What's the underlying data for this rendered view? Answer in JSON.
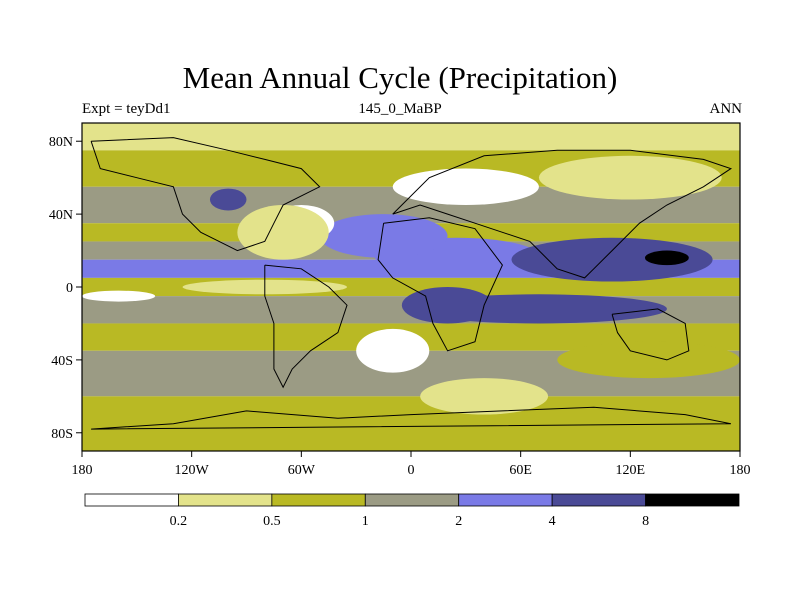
{
  "title": "Mean Annual Cycle (Precipitation)",
  "subtitle_left": "Expt = teyDd1",
  "subtitle_center": "145_0_MaBP",
  "subtitle_right": "ANN",
  "axes": {
    "lon_range": [
      -180,
      180
    ],
    "lat_range": [
      -90,
      90
    ],
    "x_ticks": [
      {
        "value": -180,
        "label": "180"
      },
      {
        "value": -120,
        "label": "120W"
      },
      {
        "value": -60,
        "label": "60W"
      },
      {
        "value": 0,
        "label": "0"
      },
      {
        "value": 60,
        "label": "60E"
      },
      {
        "value": 120,
        "label": "120E"
      },
      {
        "value": 180,
        "label": "180"
      }
    ],
    "y_ticks": [
      {
        "value": 80,
        "label": "80N"
      },
      {
        "value": 40,
        "label": "40N"
      },
      {
        "value": 0,
        "label": "0"
      },
      {
        "value": -40,
        "label": "40S"
      },
      {
        "value": -80,
        "label": "80S"
      }
    ]
  },
  "colorbar": {
    "colors": [
      "#ffffff",
      "#e3e38b",
      "#b9b924",
      "#9b9b84",
      "#7a7ae6",
      "#4a4a96",
      "#000000"
    ],
    "labels": [
      "0.2",
      "0.5",
      "1",
      "2",
      "4",
      "8"
    ]
  },
  "map_bands": [
    {
      "lat": [
        75,
        90
      ],
      "color": "#e3e38b"
    },
    {
      "lat": [
        55,
        75
      ],
      "color": "#b9b924"
    },
    {
      "lat": [
        35,
        55
      ],
      "color": "#9b9b84"
    },
    {
      "lat": [
        25,
        35
      ],
      "color": "#b9b924"
    },
    {
      "lat": [
        15,
        25
      ],
      "color": "#9b9b84"
    },
    {
      "lat": [
        5,
        15
      ],
      "color": "#7a7ae6"
    },
    {
      "lat": [
        -5,
        5
      ],
      "color": "#b9b924"
    },
    {
      "lat": [
        -20,
        -5
      ],
      "color": "#9b9b84"
    },
    {
      "lat": [
        -35,
        -20
      ],
      "color": "#b9b924"
    },
    {
      "lat": [
        -60,
        -35
      ],
      "color": "#9b9b84"
    },
    {
      "lat": [
        -90,
        -60
      ],
      "color": "#b9b924"
    }
  ],
  "map_patches": [
    {
      "lon": 25,
      "lat": 17,
      "rx": 45,
      "ry": 10,
      "color": "#7a7ae6"
    },
    {
      "lon": 110,
      "lat": 15,
      "rx": 55,
      "ry": 12,
      "color": "#4a4a96"
    },
    {
      "lon": 140,
      "lat": 16,
      "rx": 12,
      "ry": 4,
      "color": "#000000"
    },
    {
      "lon": 70,
      "lat": -12,
      "rx": 70,
      "ry": 8,
      "color": "#4a4a96"
    },
    {
      "lon": -15,
      "lat": 28,
      "rx": 35,
      "ry": 12,
      "color": "#7a7ae6"
    },
    {
      "lon": -80,
      "lat": 0,
      "rx": 45,
      "ry": 4,
      "color": "#e3e38b"
    },
    {
      "lon": -160,
      "lat": -5,
      "rx": 20,
      "ry": 3,
      "color": "#ffffff"
    },
    {
      "lon": -60,
      "lat": 35,
      "rx": 18,
      "ry": 10,
      "color": "#ffffff"
    },
    {
      "lon": -70,
      "lat": 30,
      "rx": 25,
      "ry": 15,
      "color": "#e3e38b"
    },
    {
      "lon": 30,
      "lat": 55,
      "rx": 40,
      "ry": 10,
      "color": "#ffffff"
    },
    {
      "lon": 120,
      "lat": 60,
      "rx": 50,
      "ry": 12,
      "color": "#e3e38b"
    },
    {
      "lon": -10,
      "lat": -35,
      "rx": 20,
      "ry": 12,
      "color": "#ffffff"
    },
    {
      "lon": 40,
      "lat": -60,
      "rx": 35,
      "ry": 10,
      "color": "#e3e38b"
    },
    {
      "lon": 20,
      "lat": -10,
      "rx": 25,
      "ry": 10,
      "color": "#4a4a96"
    },
    {
      "lon": -100,
      "lat": 48,
      "rx": 10,
      "ry": 6,
      "color": "#4a4a96"
    },
    {
      "lon": 130,
      "lat": -40,
      "rx": 50,
      "ry": 10,
      "color": "#b9b924"
    }
  ],
  "coastlines": [
    [
      [
        -175,
        80
      ],
      [
        -130,
        82
      ],
      [
        -100,
        75
      ],
      [
        -80,
        70
      ],
      [
        -60,
        65
      ],
      [
        -50,
        55
      ],
      [
        -70,
        45
      ],
      [
        -75,
        35
      ],
      [
        -80,
        25
      ],
      [
        -95,
        20
      ],
      [
        -105,
        25
      ],
      [
        -115,
        30
      ],
      [
        -125,
        40
      ],
      [
        -130,
        55
      ],
      [
        -150,
        60
      ],
      [
        -170,
        65
      ],
      [
        -175,
        80
      ]
    ],
    [
      [
        -80,
        12
      ],
      [
        -60,
        10
      ],
      [
        -45,
        0
      ],
      [
        -35,
        -10
      ],
      [
        -40,
        -25
      ],
      [
        -55,
        -35
      ],
      [
        -65,
        -45
      ],
      [
        -70,
        -55
      ],
      [
        -75,
        -45
      ],
      [
        -75,
        -20
      ],
      [
        -80,
        -5
      ],
      [
        -80,
        12
      ]
    ],
    [
      [
        -15,
        35
      ],
      [
        10,
        38
      ],
      [
        35,
        32
      ],
      [
        50,
        12
      ],
      [
        40,
        -10
      ],
      [
        35,
        -30
      ],
      [
        20,
        -35
      ],
      [
        12,
        -20
      ],
      [
        8,
        -5
      ],
      [
        -10,
        5
      ],
      [
        -18,
        15
      ],
      [
        -15,
        35
      ]
    ],
    [
      [
        -10,
        40
      ],
      [
        10,
        60
      ],
      [
        40,
        72
      ],
      [
        80,
        75
      ],
      [
        120,
        75
      ],
      [
        160,
        70
      ],
      [
        175,
        65
      ],
      [
        160,
        55
      ],
      [
        140,
        45
      ],
      [
        125,
        35
      ],
      [
        110,
        20
      ],
      [
        100,
        10
      ],
      [
        95,
        5
      ],
      [
        80,
        10
      ],
      [
        65,
        25
      ],
      [
        50,
        30
      ],
      [
        35,
        35
      ],
      [
        20,
        40
      ],
      [
        5,
        45
      ],
      [
        -10,
        40
      ]
    ],
    [
      [
        110,
        -15
      ],
      [
        135,
        -12
      ],
      [
        150,
        -20
      ],
      [
        152,
        -35
      ],
      [
        140,
        -40
      ],
      [
        120,
        -35
      ],
      [
        113,
        -25
      ],
      [
        110,
        -15
      ]
    ],
    [
      [
        -90,
        -68
      ],
      [
        -40,
        -72
      ],
      [
        0,
        -70
      ],
      [
        50,
        -68
      ],
      [
        100,
        -66
      ],
      [
        150,
        -70
      ],
      [
        175,
        -75
      ],
      [
        -175,
        -78
      ],
      [
        -130,
        -75
      ],
      [
        -90,
        -68
      ]
    ]
  ]
}
